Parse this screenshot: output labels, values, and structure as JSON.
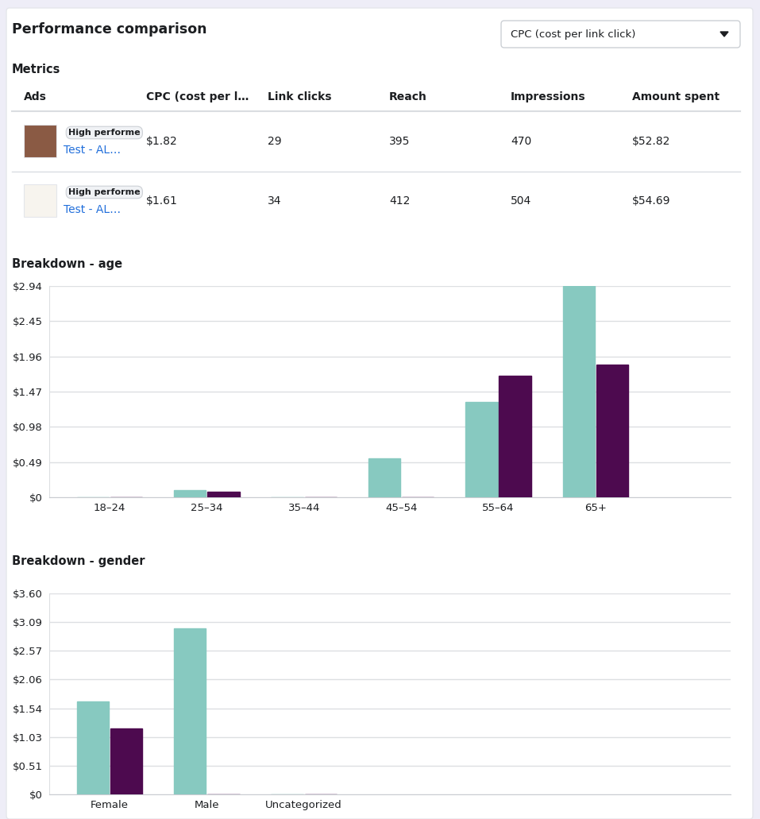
{
  "header": {
    "title": "Performance comparison",
    "dropdown": "CPC (cost per link click)"
  },
  "table": {
    "title": "Metrics",
    "columns": [
      "Ads",
      "CPC (cost per l…",
      "Link clicks",
      "Reach",
      "Impressions",
      "Amount spent"
    ],
    "rows": [
      {
        "badge": "High performe",
        "ad": "Test - AL…",
        "cells": [
          "$1.82",
          "29",
          "395",
          "470",
          "$52.82"
        ]
      },
      {
        "badge": "High performe",
        "ad": "Test - AL…",
        "cells": [
          "$1.61",
          "34",
          "412",
          "504",
          "$54.69"
        ]
      }
    ]
  },
  "chart_data": [
    {
      "type": "bar",
      "title": "Breakdown - age",
      "categories": [
        "18–24",
        "25–34",
        "35–44",
        "45–54",
        "55–64",
        "65+"
      ],
      "series": [
        {
          "color": "#87c9c0",
          "values": [
            0,
            0.1,
            0,
            0.54,
            1.33,
            2.94
          ]
        },
        {
          "color": "#4d0a4f",
          "values": [
            0,
            0.08,
            0,
            0,
            1.69,
            1.85
          ]
        }
      ],
      "ylim": [
        0,
        2.94
      ],
      "yticks": [
        {
          "value": 0,
          "label": "$0"
        },
        {
          "value": 0.49,
          "label": "$0.49"
        },
        {
          "value": 0.98,
          "label": "$0.98"
        },
        {
          "value": 1.47,
          "label": "$1.47"
        },
        {
          "value": 1.96,
          "label": "$1.96"
        },
        {
          "value": 2.45,
          "label": "$2.45"
        },
        {
          "value": 2.94,
          "label": "$2.94"
        }
      ],
      "grid": true
    },
    {
      "type": "bar",
      "title": "Breakdown - gender",
      "categories": [
        "Female",
        "Male",
        "Uncategorized"
      ],
      "series": [
        {
          "color": "#87c9c0",
          "values": [
            1.66,
            2.97,
            0
          ]
        },
        {
          "color": "#4d0a4f",
          "values": [
            1.18,
            0,
            0
          ]
        }
      ],
      "ylim": [
        0,
        3.6
      ],
      "yticks": [
        {
          "value": 0,
          "label": "$0"
        },
        {
          "value": 0.51,
          "label": "$0.51"
        },
        {
          "value": 1.03,
          "label": "$1.03"
        },
        {
          "value": 1.54,
          "label": "$1.54"
        },
        {
          "value": 2.06,
          "label": "$2.06"
        },
        {
          "value": 2.57,
          "label": "$2.57"
        },
        {
          "value": 3.09,
          "label": "$3.09"
        },
        {
          "value": 3.6,
          "label": "$3.60"
        }
      ],
      "grid": true
    }
  ]
}
